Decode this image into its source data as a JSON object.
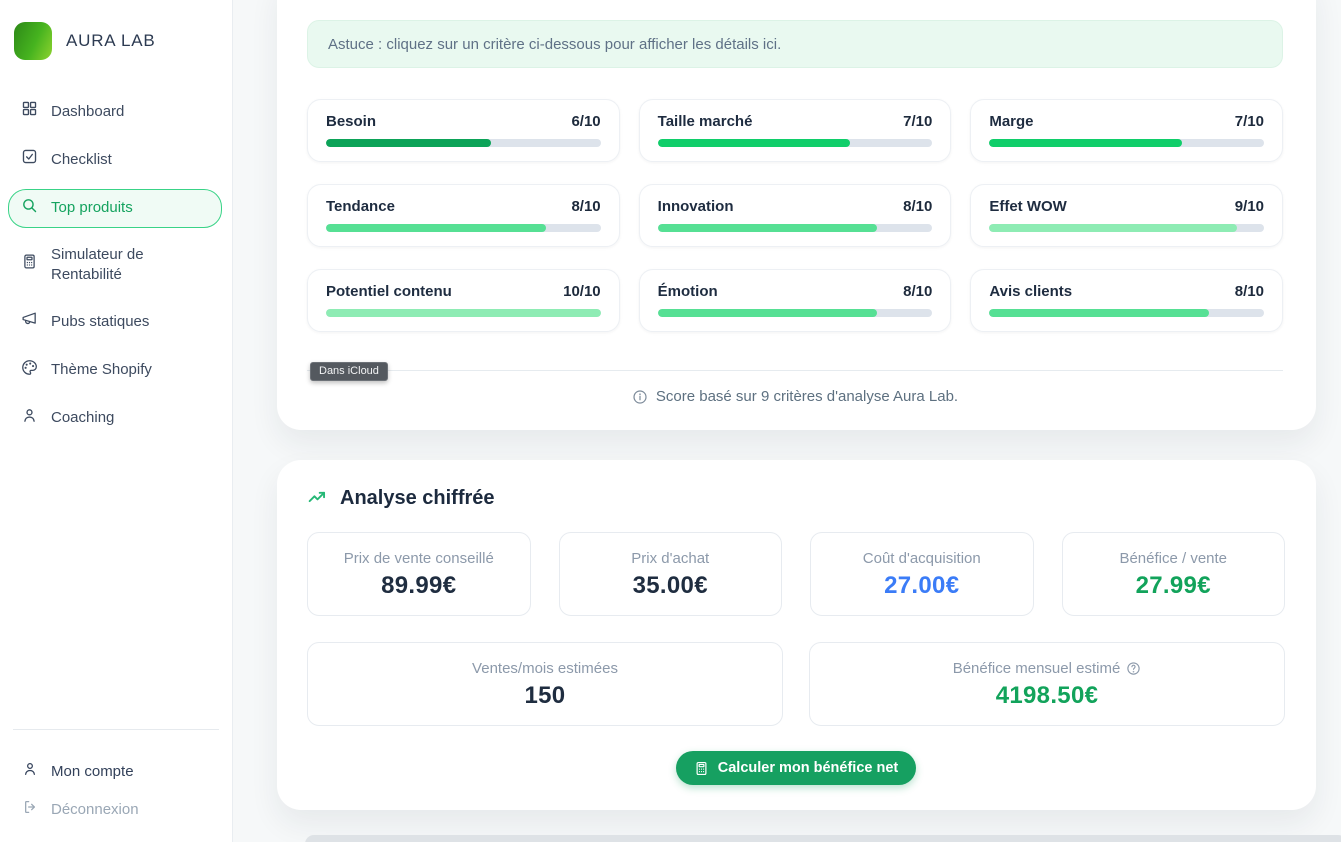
{
  "sidebar": {
    "brand": "AURA LAB",
    "items": [
      {
        "label": "Dashboard",
        "icon": "dashboard-icon",
        "active": false
      },
      {
        "label": "Checklist",
        "icon": "checklist-icon",
        "active": false
      },
      {
        "label": "Top produits",
        "icon": "search-icon",
        "active": true
      },
      {
        "label": "Simulateur de Rentabilité",
        "icon": "calculator-icon",
        "active": false
      },
      {
        "label": "Pubs statiques",
        "icon": "megaphone-icon",
        "active": false
      },
      {
        "label": "Thème Shopify",
        "icon": "palette-icon",
        "active": false
      },
      {
        "label": "Coaching",
        "icon": "person-icon",
        "active": false
      }
    ],
    "footer_items": [
      {
        "label": "Mon compte",
        "icon": "person-icon"
      },
      {
        "label": "Déconnexion",
        "icon": "logout-icon"
      }
    ]
  },
  "criteria_panel": {
    "tip": "Astuce : cliquez sur un critère ci-dessous pour afficher les détails ici.",
    "criteria": [
      {
        "label": "Besoin",
        "score": "6/10",
        "value": 6,
        "max": 10,
        "color": "#0ca358"
      },
      {
        "label": "Taille marché",
        "score": "7/10",
        "value": 7,
        "max": 10,
        "color": "#10ce6a"
      },
      {
        "label": "Marge",
        "score": "7/10",
        "value": 7,
        "max": 10,
        "color": "#10ce6a"
      },
      {
        "label": "Tendance",
        "score": "8/10",
        "value": 8,
        "max": 10,
        "color": "#56e094"
      },
      {
        "label": "Innovation",
        "score": "8/10",
        "value": 8,
        "max": 10,
        "color": "#56e094"
      },
      {
        "label": "Effet WOW",
        "score": "9/10",
        "value": 9,
        "max": 10,
        "color": "#8eecb4"
      },
      {
        "label": "Potentiel contenu",
        "score": "10/10",
        "value": 10,
        "max": 10,
        "color": "#8eecb4"
      },
      {
        "label": "Émotion",
        "score": "8/10",
        "value": 8,
        "max": 10,
        "color": "#56e094"
      },
      {
        "label": "Avis clients",
        "score": "8/10",
        "value": 8,
        "max": 10,
        "color": "#56e094"
      }
    ],
    "footnote": "Score basé sur 9 critères d'analyse Aura Lab.",
    "tooltip": "Dans iCloud"
  },
  "analysis_panel": {
    "title": "Analyse chiffrée",
    "stats": [
      {
        "label": "Prix de vente conseillé",
        "value": "89.99€",
        "color": "dark"
      },
      {
        "label": "Prix d'achat",
        "value": "35.00€",
        "color": "dark"
      },
      {
        "label": "Coût d'acquisition",
        "value": "27.00€",
        "color": "blue"
      },
      {
        "label": "Bénéfice / vente",
        "value": "27.99€",
        "color": "green"
      }
    ],
    "stats_wide": [
      {
        "label": "Ventes/mois estimées",
        "value": "150",
        "color": "dark"
      },
      {
        "label": "Bénéfice mensuel estimé",
        "value": "4198.50€",
        "color": "green"
      }
    ],
    "button_label": "Calculer mon bénéfice net"
  },
  "value_colors": {
    "dark": "#1f2d40",
    "blue": "#3b7cf7",
    "green": "#12a35b"
  },
  "accent": {
    "brand_green": "#16a061",
    "active_border": "#39d387",
    "track": "#dde3eb"
  }
}
